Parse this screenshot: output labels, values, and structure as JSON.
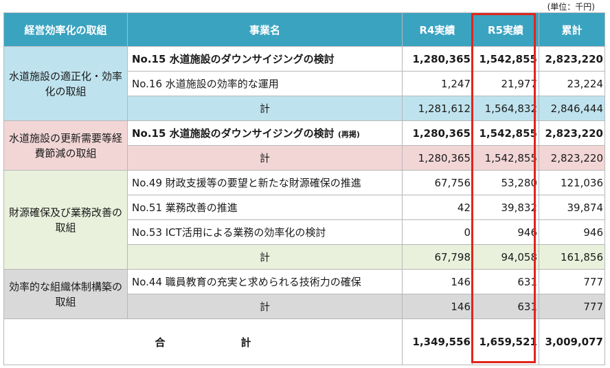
{
  "unit_label": "(単位：千円)",
  "headers": {
    "category": "経営効率化の取組",
    "project": "事業名",
    "r4": "R4実績",
    "r5": "R5実績",
    "cumulative": "累計"
  },
  "groups": [
    {
      "category": "水道施設の適正化・効率化の取組",
      "rows": [
        {
          "project": "No.15 水道施設のダウンサイジングの検討",
          "r4": "1,280,365",
          "r5": "1,542,855",
          "cumulative": "2,823,220"
        },
        {
          "project": "No.16 水道施設の効率的な運用",
          "r4": "1,247",
          "r5": "21,977",
          "cumulative": "23,224"
        }
      ],
      "subtotal": {
        "label": "計",
        "r4": "1,281,612",
        "r5": "1,564,832",
        "cumulative": "2,846,444"
      }
    },
    {
      "category": "水道施設の更新需要等経費節減の取組",
      "rows": [
        {
          "project": "No.15 水道施設のダウンサイジングの検討",
          "tag": "(再掲)",
          "r4": "1,280,365",
          "r5": "1,542,855",
          "cumulative": "2,823,220"
        }
      ],
      "subtotal": {
        "label": "計",
        "r4": "1,280,365",
        "r5": "1,542,855",
        "cumulative": "2,823,220"
      }
    },
    {
      "category": "財源確保及び業務改善の取組",
      "rows": [
        {
          "project": "No.49 財政支援等の要望と新たな財源確保の推進",
          "r4": "67,756",
          "r5": "53,280",
          "cumulative": "121,036"
        },
        {
          "project": "No.51 業務改善の推進",
          "r4": "42",
          "r5": "39,832",
          "cumulative": "39,874"
        },
        {
          "project": "No.53 ICT活用による業務の効率化の検討",
          "r4": "0",
          "r5": "946",
          "cumulative": "946"
        }
      ],
      "subtotal": {
        "label": "計",
        "r4": "67,798",
        "r5": "94,058",
        "cumulative": "161,856"
      }
    },
    {
      "category": "効率的な組織体制構築の取組",
      "rows": [
        {
          "project": "No.44 職員教育の充実と求められる技術力の確保",
          "r4": "146",
          "r5": "631",
          "cumulative": "777"
        }
      ],
      "subtotal": {
        "label": "計",
        "r4": "146",
        "r5": "631",
        "cumulative": "777"
      }
    }
  ],
  "grand_total": {
    "label_left": "合",
    "label_right": "計",
    "r4": "1,349,556",
    "r5": "1,659,521",
    "cumulative": "3,009,077"
  },
  "colors": {
    "header": "#3aa3c0",
    "group1": "#bfe3ee",
    "group2": "#f2d6d6",
    "group3": "#e9f1dc",
    "group4": "#d9d9d9",
    "highlight_border": "#e0241b"
  }
}
